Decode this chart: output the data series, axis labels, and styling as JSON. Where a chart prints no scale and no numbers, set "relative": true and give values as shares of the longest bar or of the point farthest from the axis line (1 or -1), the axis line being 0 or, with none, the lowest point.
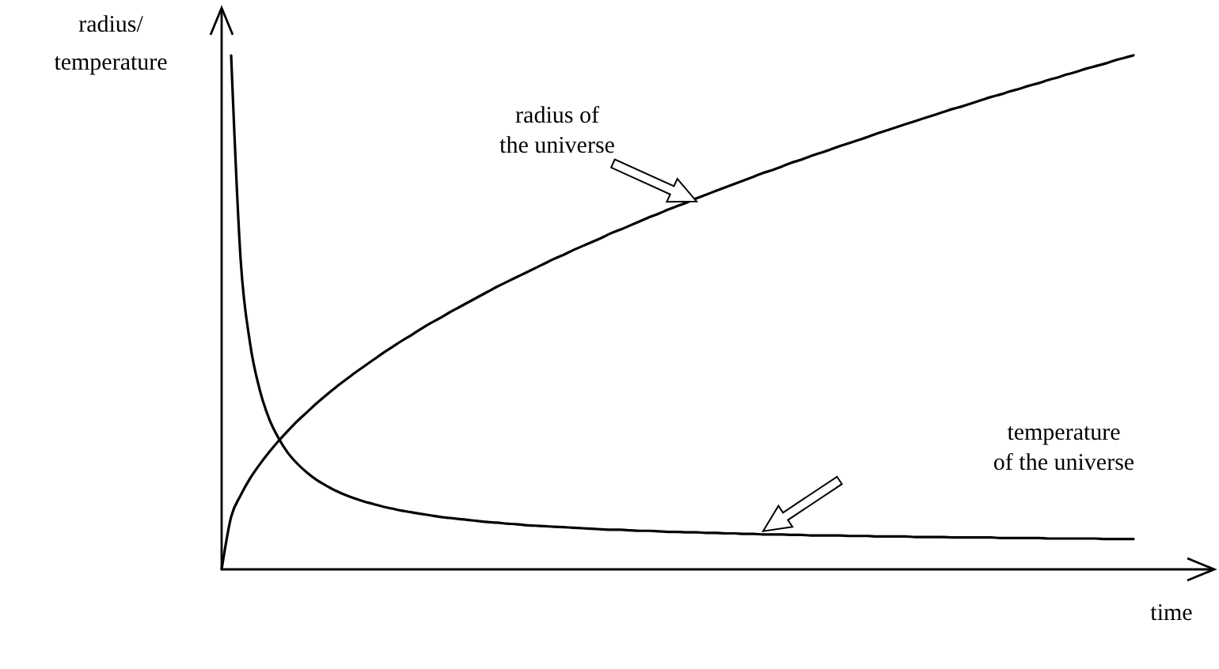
{
  "chart_data": {
    "type": "line",
    "relative": true,
    "ylabel": "radius/temperature",
    "xlabel": "time",
    "categories": [
      null,
      null,
      null,
      null,
      null,
      null,
      null,
      null,
      null,
      null,
      null,
      null,
      null,
      null,
      null,
      null,
      null,
      null,
      null,
      null,
      null,
      null,
      null,
      null,
      null,
      null,
      null,
      null,
      null,
      null,
      null,
      null,
      null,
      null,
      null,
      null,
      null,
      null,
      null,
      null,
      null,
      null,
      null,
      null,
      null,
      null,
      null,
      null,
      null,
      null,
      null,
      null,
      null,
      null,
      null,
      null,
      null,
      null,
      null,
      null,
      null,
      null,
      null,
      null,
      null,
      null,
      null,
      null,
      null,
      null,
      null,
      null,
      null,
      null,
      null,
      null,
      null,
      null,
      null,
      null,
      null,
      null,
      null,
      null,
      null,
      null,
      null,
      null,
      null,
      null,
      null,
      null,
      null,
      null,
      null,
      null,
      null
    ],
    "series": [
      {
        "name": "radius of the universe",
        "color": "#000000",
        "values": [
          0,
          0.102,
          0.144,
          0.177,
          0.204,
          0.228,
          0.25,
          0.27,
          0.289,
          0.306,
          0.323,
          0.339,
          0.354,
          0.368,
          0.382,
          0.395,
          0.408,
          0.421,
          0.433,
          0.445,
          0.456,
          0.468,
          0.479,
          0.489,
          0.5,
          0.51,
          0.52,
          0.53,
          0.54,
          0.55,
          0.559,
          0.568,
          0.577,
          0.586,
          0.595,
          0.604,
          0.612,
          0.621,
          0.629,
          0.637,
          0.645,
          0.654,
          0.661,
          0.669,
          0.677,
          0.685,
          0.692,
          0.7,
          0.707,
          0.714,
          0.722,
          0.729,
          0.736,
          0.743,
          0.75,
          0.757,
          0.764,
          0.771,
          0.777,
          0.784,
          0.791,
          0.797,
          0.804,
          0.81,
          0.816,
          0.823,
          0.829,
          0.835,
          0.841,
          0.848,
          0.854,
          0.86,
          0.866,
          0.872,
          0.878,
          0.884,
          0.89,
          0.896,
          0.901,
          0.907,
          0.913,
          0.919,
          0.924,
          0.93,
          0.935,
          0.941,
          0.946,
          0.952,
          0.957,
          0.963,
          0.968,
          0.974,
          0.979,
          0.984,
          0.99,
          0.995,
          1
        ]
      },
      {
        "name": "temperature of the universe",
        "color": "#000000",
        "values": [
          null,
          1,
          0.603,
          0.439,
          0.35,
          0.293,
          0.255,
          0.226,
          0.205,
          0.188,
          0.174,
          0.163,
          0.153,
          0.145,
          0.138,
          0.132,
          0.127,
          0.122,
          0.118,
          0.114,
          0.111,
          0.108,
          0.105,
          0.102,
          0.1,
          0.098,
          0.096,
          0.094,
          0.092,
          0.091,
          0.089,
          0.088,
          0.086,
          0.085,
          0.084,
          0.083,
          0.082,
          0.081,
          0.08,
          0.079,
          0.078,
          0.077,
          0.077,
          0.076,
          0.075,
          0.075,
          0.074,
          0.073,
          0.073,
          0.072,
          0.072,
          0.071,
          0.071,
          0.07,
          0.07,
          0.069,
          0.069,
          0.068,
          0.068,
          0.068,
          0.067,
          0.067,
          0.066,
          0.066,
          0.066,
          0.066,
          0.065,
          0.065,
          0.065,
          0.064,
          0.064,
          0.064,
          0.064,
          0.063,
          0.063,
          0.063,
          0.063,
          0.062,
          0.062,
          0.062,
          0.062,
          0.062,
          0.061,
          0.061,
          0.061,
          0.061,
          0.061,
          0.06,
          0.06,
          0.06,
          0.06,
          0.06,
          0.06,
          0.059,
          0.059,
          0.059,
          0.059
        ]
      }
    ]
  }
}
